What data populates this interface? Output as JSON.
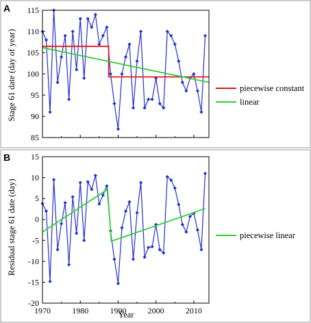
{
  "chart_data": [
    {
      "type": "line",
      "panel_label": "A",
      "xlabel": "",
      "ylabel": "Stage 61 date (day of year)",
      "xlim": [
        1970,
        2014
      ],
      "ylim": [
        85,
        115
      ],
      "yticks": [
        85,
        90,
        95,
        100,
        105,
        110,
        115
      ],
      "xticks": [
        1970,
        1980,
        1990,
        2000,
        2010
      ],
      "grid": false,
      "legend_position": "right",
      "colors": {
        "data": "#1f2fd0",
        "piecewise_constant": "#e01818",
        "linear": "#33cc33"
      },
      "series": [
        {
          "name": "",
          "style": "line-diamond",
          "x": [
            1970,
            1971,
            1972,
            1973,
            1974,
            1975,
            1976,
            1977,
            1978,
            1979,
            1980,
            1981,
            1982,
            1983,
            1984,
            1985,
            1986,
            1987,
            1988,
            1989,
            1990,
            1991,
            1992,
            1993,
            1994,
            1995,
            1996,
            1997,
            1998,
            1999,
            2000,
            2001,
            2002,
            2003,
            2004,
            2005,
            2006,
            2007,
            2008,
            2009,
            2010,
            2011,
            2012,
            2013
          ],
          "y": [
            110,
            108,
            91,
            115,
            98,
            104,
            109,
            94,
            110,
            101,
            113,
            99,
            113,
            111,
            114,
            107,
            109,
            111,
            100,
            93,
            87,
            100,
            104,
            107,
            92,
            103,
            110,
            92,
            94,
            94,
            99,
            93,
            92,
            110,
            109,
            107,
            103,
            98,
            96,
            99,
            100,
            96,
            91,
            109
          ]
        },
        {
          "name": "piecewise constant",
          "style": "line",
          "x": [
            1970,
            1987.5,
            1987.5,
            2014
          ],
          "y": [
            106.5,
            106.5,
            99.3,
            99.3
          ]
        },
        {
          "name": "linear",
          "style": "line",
          "x": [
            1970,
            2014
          ],
          "y": [
            106.2,
            98.0
          ]
        }
      ]
    },
    {
      "type": "line",
      "panel_label": "B",
      "xlabel": "Year",
      "ylabel": "Residual stage 61 date (day)",
      "xlim": [
        1970,
        2014
      ],
      "ylim": [
        -20,
        15
      ],
      "yticks": [
        -20,
        -15,
        -10,
        -5,
        0,
        5,
        10,
        15
      ],
      "xticks": [
        1970,
        1980,
        1990,
        2000,
        2010
      ],
      "grid": false,
      "legend_position": "right",
      "colors": {
        "data": "#1f2fd0",
        "piecewise_linear": "#33cc33"
      },
      "series": [
        {
          "name": "",
          "style": "line-diamond",
          "x": [
            1970,
            1971,
            1972,
            1973,
            1974,
            1975,
            1976,
            1977,
            1978,
            1979,
            1980,
            1981,
            1982,
            1983,
            1984,
            1985,
            1986,
            1987,
            1988,
            1989,
            1990,
            1991,
            1992,
            1993,
            1994,
            1995,
            1996,
            1997,
            1998,
            1999,
            2000,
            2001,
            2002,
            2003,
            2004,
            2005,
            2006,
            2007,
            2008,
            2009,
            2010,
            2011,
            2012,
            2013
          ],
          "y": [
            3.8,
            2,
            -14.8,
            9.5,
            -7.2,
            -1,
            4,
            -10.8,
            5.4,
            -3.3,
            8.8,
            -5,
            9,
            7.2,
            10.5,
            3.7,
            5.8,
            8,
            -2.7,
            -9.5,
            -15.3,
            -2,
            2,
            4.2,
            -9.5,
            1.6,
            8.8,
            -9,
            -6.7,
            -6.5,
            -1.2,
            -7.2,
            -8,
            10.2,
            9.4,
            7.5,
            3.6,
            -1.2,
            -3,
            0.7,
            1.5,
            -2.5,
            -7.2,
            11
          ]
        },
        {
          "name": "piecewise linear",
          "style": "line",
          "x": [
            1970,
            1987.2,
            1988.2,
            2013
          ],
          "y": [
            -3,
            7.2,
            -5.2,
            2.6
          ]
        }
      ]
    }
  ]
}
